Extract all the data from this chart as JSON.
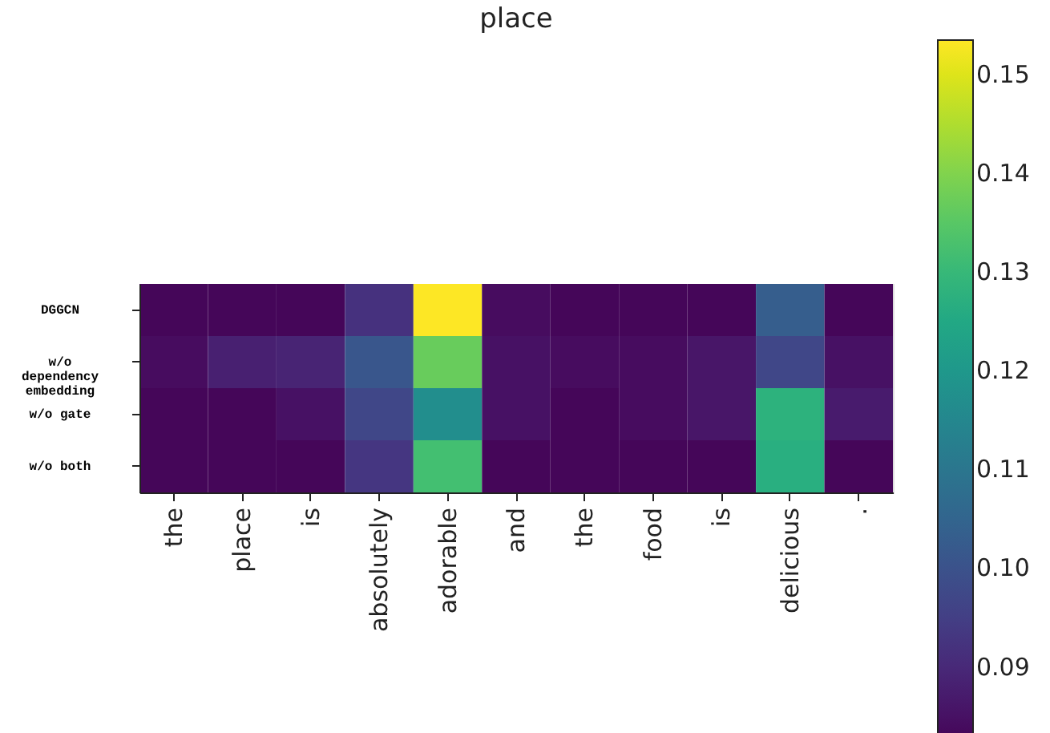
{
  "chart_data": {
    "type": "heatmap",
    "title": "place",
    "categories": [
      "the",
      "place",
      "is",
      "absolutely",
      "adorable",
      "and",
      "the",
      "food",
      "is",
      "delicious",
      "."
    ],
    "y_categories": [
      "DGGCN",
      "w/o dependency embedding",
      "w/o gate",
      "w/o both"
    ],
    "cells": [
      [
        0.083,
        0.083,
        0.083,
        0.092,
        0.1535,
        0.084,
        0.083,
        0.083,
        0.083,
        0.103,
        0.083
      ],
      [
        0.084,
        0.088,
        0.089,
        0.101,
        0.137,
        0.085,
        0.084,
        0.084,
        0.086,
        0.097,
        0.085
      ],
      [
        0.083,
        0.083,
        0.085,
        0.097,
        0.117,
        0.085,
        0.083,
        0.084,
        0.086,
        0.128,
        0.087
      ],
      [
        0.083,
        0.083,
        0.083,
        0.093,
        0.132,
        0.083,
        0.083,
        0.083,
        0.083,
        0.127,
        0.083
      ]
    ],
    "clim": [
      0.082,
      0.1535
    ],
    "cticks": [
      0.09,
      {
        "value": 0.1,
        "label": "0.10"
      },
      0.11,
      0.12,
      0.13,
      0.14,
      0.15
    ]
  }
}
